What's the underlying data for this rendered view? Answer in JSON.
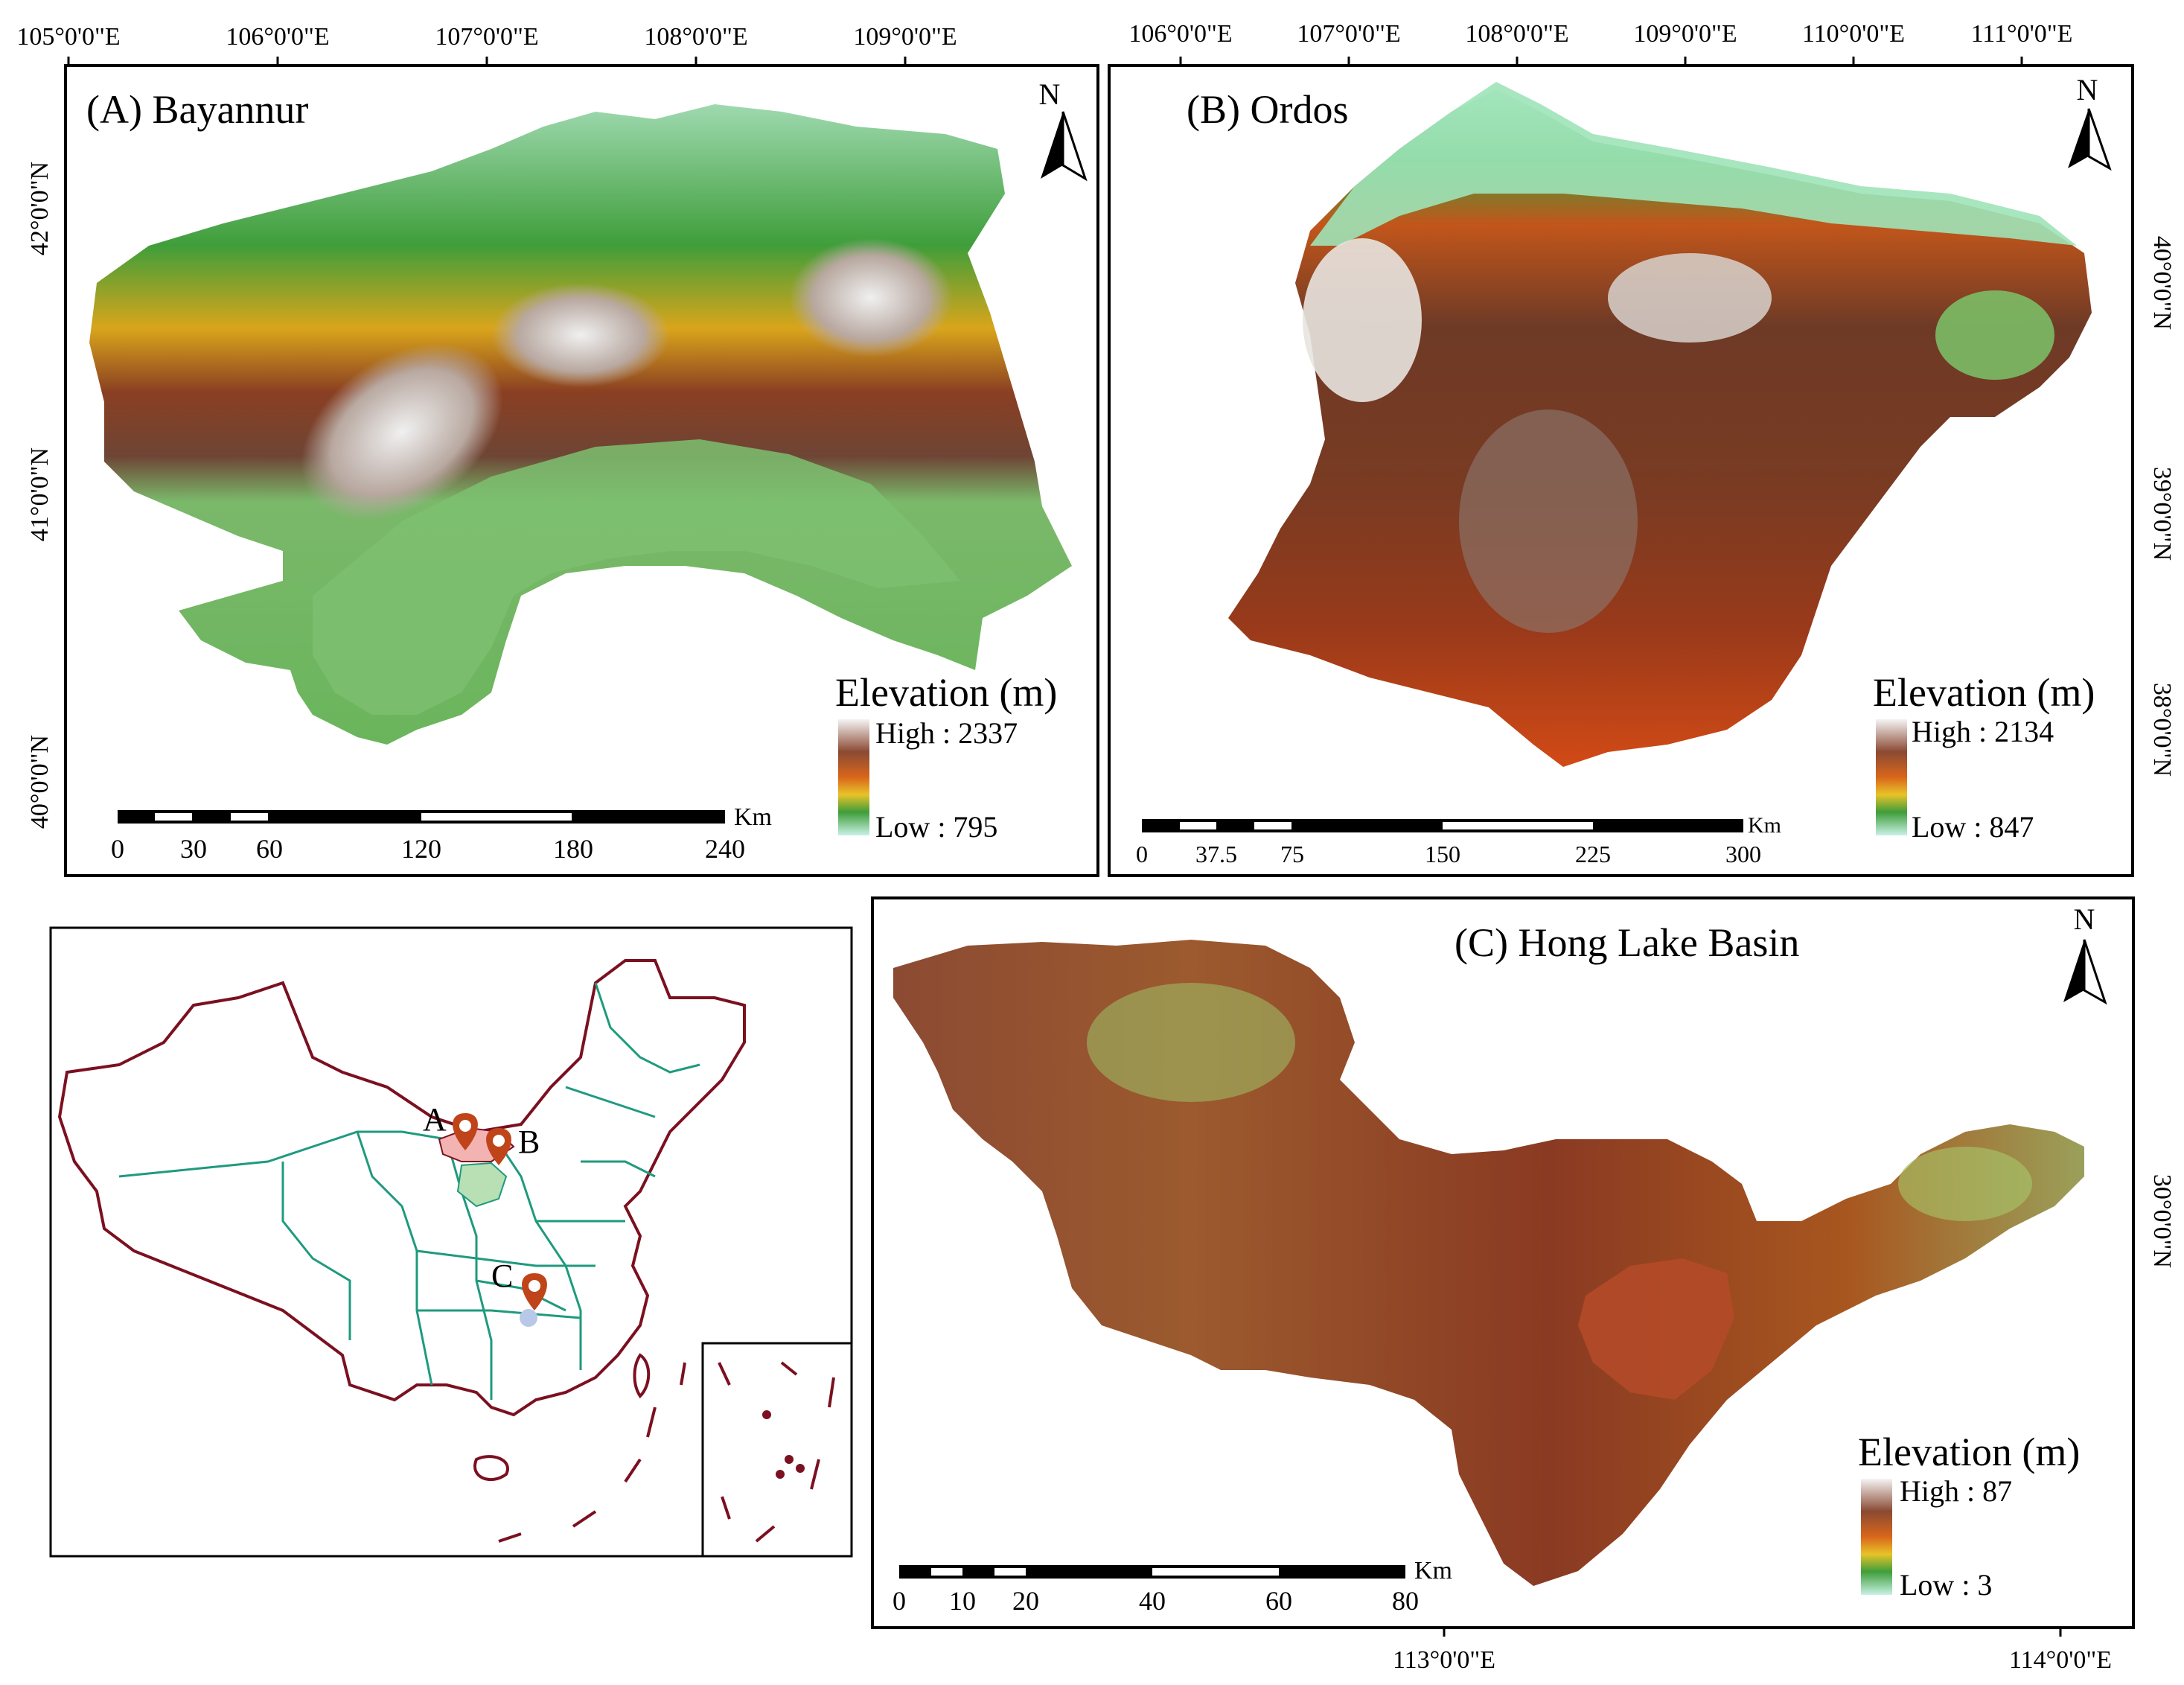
{
  "panelA": {
    "title": "(A) Bayannur",
    "north": "N",
    "lon_ticks": [
      "105°0'0\"E",
      "106°0'0\"E",
      "107°0'0\"E",
      "108°0'0\"E",
      "109°0'0\"E"
    ],
    "lat_ticks": [
      "42°0'0\"N",
      "41°0'0\"N",
      "40°0'0\"N"
    ],
    "legend": {
      "title": "Elevation (m)",
      "high": "High : 2337",
      "low": "Low : 795"
    },
    "scale": {
      "unit": "Km",
      "ticks": [
        "0",
        "30",
        "60",
        "120",
        "180",
        "240"
      ]
    }
  },
  "panelB": {
    "title": "(B) Ordos",
    "north": "N",
    "lon_ticks": [
      "106°0'0\"E",
      "107°0'0\"E",
      "108°0'0\"E",
      "109°0'0\"E",
      "110°0'0\"E",
      "111°0'0\"E"
    ],
    "lat_ticks": [
      "40°0'0\"N",
      "39°0'0\"N",
      "38°0'0\"N"
    ],
    "legend": {
      "title": "Elevation (m)",
      "high": "High : 2134",
      "low": "Low : 847"
    },
    "scale": {
      "unit": "Km",
      "ticks": [
        "0",
        "37.5",
        "75",
        "150",
        "225",
        "300"
      ]
    }
  },
  "panelC": {
    "title": "(C) Hong Lake Basin",
    "north": "N",
    "lon_ticks": [
      "113°0'0\"E",
      "114°0'0\"E"
    ],
    "lat_ticks": [
      "30°0'0\"N"
    ],
    "legend": {
      "title": "Elevation (m)",
      "high": "High : 87",
      "low": "Low : 3"
    },
    "scale": {
      "unit": "Km",
      "ticks": [
        "0",
        "10",
        "20",
        "40",
        "60",
        "80"
      ]
    }
  },
  "china": {
    "markers": [
      "A",
      "B",
      "C"
    ],
    "colors": {
      "border": "#7b1020",
      "province": "#1f9a7e",
      "marker": "#c0441a",
      "regionA": "#f3b3b3",
      "regionB": "#b8e0b4"
    }
  },
  "colors": {
    "dem_high": "#f2f2f2",
    "dem_brown": "#7a3b22",
    "dem_orange": "#d9661b",
    "dem_yellow": "#e8c328",
    "dem_green": "#3f9e3a",
    "dem_low": "#c8f1e6"
  }
}
